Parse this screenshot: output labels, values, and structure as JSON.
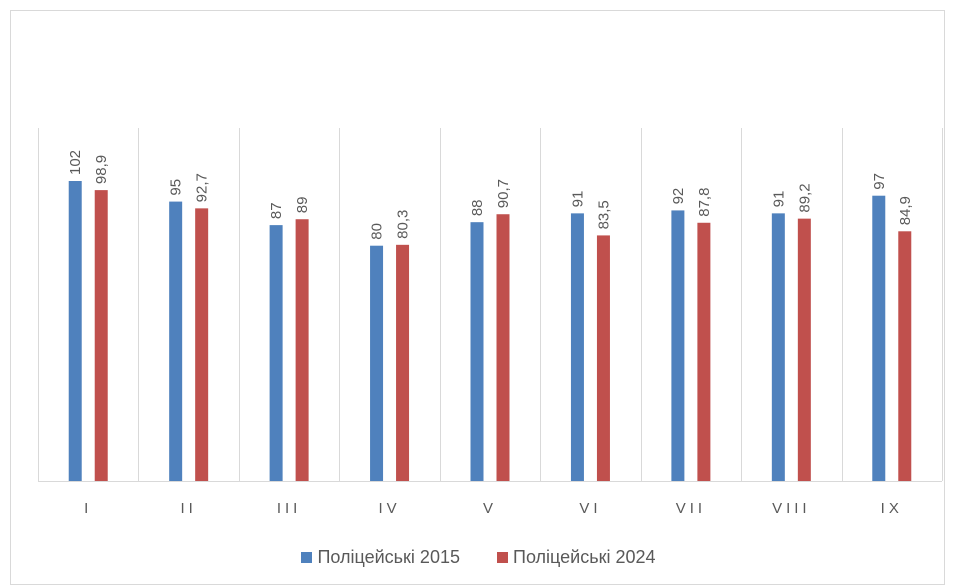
{
  "chart_data": {
    "type": "bar",
    "title": "",
    "xlabel": "",
    "ylabel": "",
    "categories": [
      "I",
      "II",
      "III",
      "IV",
      "V",
      "VI",
      "VII",
      "VIII",
      "IX"
    ],
    "series": [
      {
        "name": "Поліцейські 2015",
        "color": "#4f81bd",
        "values": [
          102,
          95,
          87,
          80,
          88,
          91,
          92,
          91,
          97
        ],
        "labels": [
          "102",
          "95",
          "87",
          "80",
          "88",
          "91",
          "92",
          "91",
          "97"
        ]
      },
      {
        "name": "Поліцейські 2024",
        "color": "#c0504d",
        "values": [
          98.9,
          92.7,
          89,
          80.3,
          90.7,
          83.5,
          87.8,
          89.2,
          84.9
        ],
        "labels": [
          "98,9",
          "92,7",
          "89",
          "80,3",
          "90,7",
          "83,5",
          "87,8",
          "89,2",
          "84,9"
        ]
      }
    ],
    "ylim": [
      0,
      120
    ],
    "grid": "vertical category separators",
    "legend_position": "bottom",
    "data_label_rotation": "vertical"
  }
}
